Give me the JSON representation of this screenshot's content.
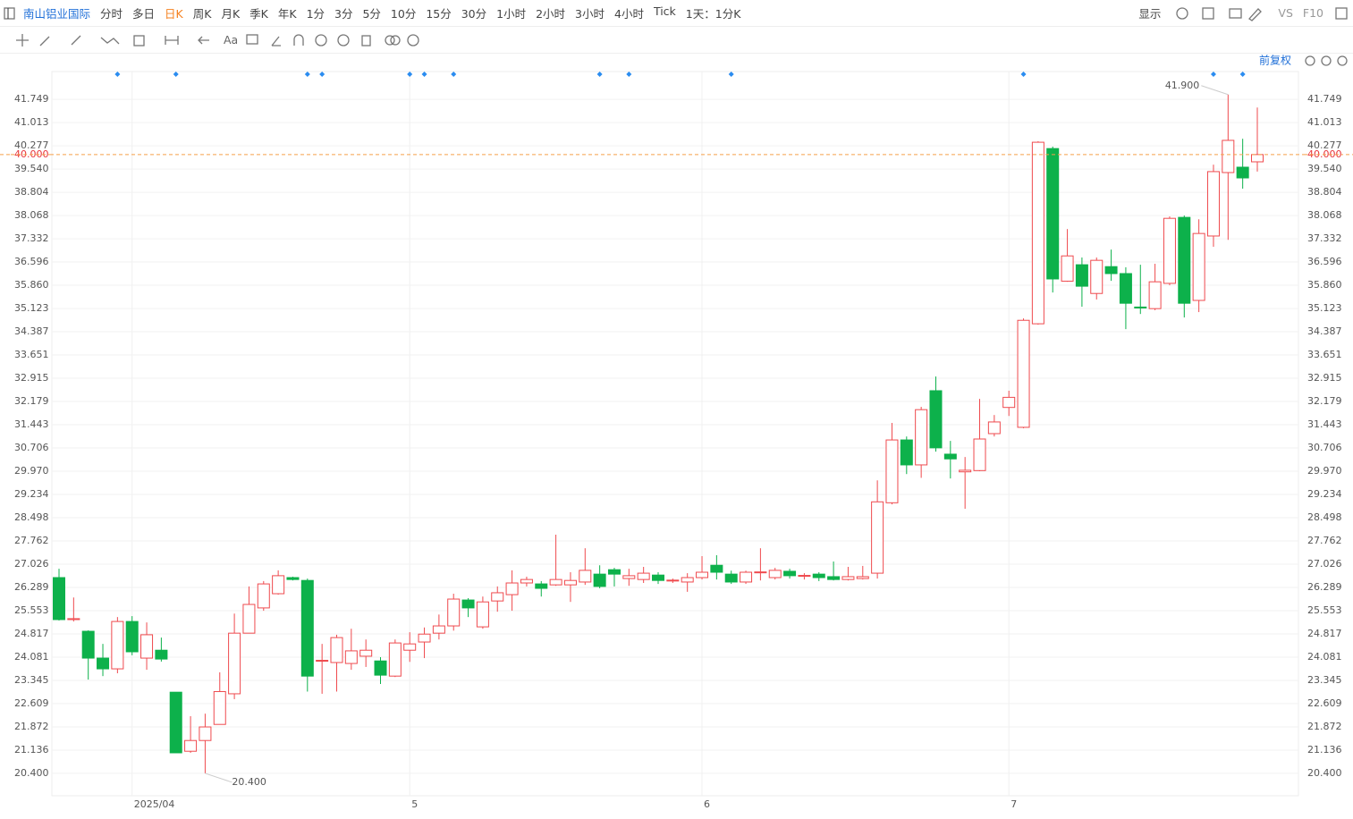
{
  "toolbar": {
    "symbol": "南山铝业国际",
    "periods": [
      "分时",
      "多日",
      "日K",
      "周K",
      "月K",
      "季K",
      "年K",
      "1分",
      "3分",
      "5分",
      "10分",
      "15分",
      "30分",
      "1小时",
      "2小时",
      "3小时",
      "4小时",
      "Tick"
    ],
    "active_period": 2,
    "interval": "1天：1分K",
    "display": "显示",
    "compare": "VS",
    "f10": "F10",
    "text_tool": "Aa"
  },
  "adjust": "前复权",
  "chart_data": {
    "type": "candlestick",
    "categories": [
      null,
      null,
      null,
      null,
      null,
      "2025/04",
      null,
      null,
      null,
      null,
      null,
      null,
      null,
      null,
      null,
      null,
      null,
      null,
      null,
      null,
      null,
      null,
      null,
      null,
      "5",
      null,
      null,
      null,
      null,
      null,
      null,
      null,
      null,
      null,
      null,
      null,
      null,
      null,
      null,
      null,
      null,
      null,
      null,
      null,
      "6",
      null,
      null,
      null,
      null,
      null,
      null,
      null,
      null,
      null,
      null,
      null,
      null,
      null,
      null,
      null,
      null,
      null,
      null,
      null,
      null,
      "7",
      null,
      null,
      null,
      null,
      null,
      null,
      null,
      null,
      null,
      null,
      null,
      null,
      null,
      null,
      null,
      null,
      null
    ],
    "open": [
      26.6,
      25.27,
      24.9,
      24.05,
      23.71,
      25.21,
      24.05,
      24.3,
      22.97,
      21.1,
      21.44,
      21.95,
      22.92,
      24.84,
      25.64,
      26.09,
      26.6,
      26.51,
      23.96,
      23.91,
      23.88,
      24.11,
      23.96,
      23.48,
      24.3,
      24.56,
      24.84,
      25.07,
      25.89,
      25.04,
      25.86,
      26.06,
      26.43,
      26.4,
      26.37,
      26.37,
      26.46,
      26.71,
      26.85,
      26.57,
      26.54,
      26.68,
      26.51,
      26.46,
      26.6,
      26.99,
      26.71,
      26.46,
      26.77,
      26.6,
      26.8,
      26.66,
      26.71,
      26.63,
      26.54,
      26.57,
      26.74,
      28.97,
      30.96,
      30.17,
      32.52,
      30.51,
      29.95,
      29.99,
      31.16,
      31.99,
      31.36,
      34.64,
      40.19,
      35.99,
      36.51,
      35.6,
      36.45,
      36.23,
      35.17,
      35.12,
      35.92,
      38.01,
      35.38,
      37.42,
      39.43,
      39.6,
      39.77
    ],
    "high": [
      26.88,
      25.97,
      24.93,
      24.5,
      25.35,
      25.38,
      25.18,
      24.7,
      22.97,
      22.21,
      22.29,
      23.6,
      25.46,
      26.32,
      26.49,
      26.83,
      26.63,
      26.57,
      24.5,
      24.79,
      24.98,
      24.64,
      24.08,
      24.64,
      24.87,
      25.02,
      25.43,
      26.09,
      25.95,
      26.0,
      26.32,
      26.83,
      26.63,
      26.49,
      27.96,
      26.77,
      27.53,
      26.99,
      26.91,
      26.88,
      26.94,
      26.77,
      26.57,
      26.74,
      27.28,
      27.31,
      26.82,
      26.82,
      27.53,
      26.91,
      26.88,
      26.74,
      26.77,
      27.11,
      26.94,
      26.97,
      29.68,
      31.5,
      31.07,
      32.01,
      32.97,
      30.93,
      30.42,
      32.26,
      31.75,
      32.52,
      34.81,
      40.42,
      40.25,
      37.64,
      36.74,
      36.74,
      36.99,
      36.43,
      36.51,
      36.54,
      38.04,
      38.07,
      37.95,
      39.68,
      41.9,
      40.5,
      41.49
    ],
    "low": [
      25.24,
      25.21,
      23.37,
      23.48,
      23.57,
      24.14,
      23.68,
      23.94,
      21.05,
      21.05,
      20.4,
      21.95,
      22.75,
      24.84,
      25.55,
      26.06,
      26.51,
      22.99,
      22.92,
      22.99,
      23.68,
      23.77,
      23.23,
      23.45,
      23.93,
      24.05,
      24.64,
      24.92,
      25.35,
      24.98,
      25.52,
      25.55,
      26.32,
      26.0,
      26.34,
      25.83,
      26.37,
      26.26,
      26.32,
      26.34,
      26.43,
      26.4,
      26.43,
      26.15,
      26.54,
      26.54,
      26.4,
      26.4,
      26.51,
      26.54,
      26.57,
      26.54,
      26.49,
      26.51,
      26.51,
      26.54,
      26.57,
      28.92,
      29.88,
      29.76,
      30.59,
      29.74,
      28.78,
      29.97,
      31.07,
      31.72,
      31.33,
      34.61,
      35.63,
      35.97,
      35.18,
      35.41,
      36.0,
      34.47,
      34.95,
      35.07,
      35.86,
      34.84,
      35.01,
      37.08,
      37.3,
      38.92,
      39.46
    ],
    "close": [
      25.27,
      25.3,
      24.05,
      23.71,
      25.21,
      24.25,
      24.79,
      24.02,
      21.05,
      21.44,
      21.87,
      22.99,
      24.84,
      25.75,
      26.4,
      26.66,
      26.54,
      23.48,
      23.98,
      24.7,
      24.28,
      24.3,
      23.51,
      24.53,
      24.5,
      24.81,
      25.07,
      25.92,
      25.64,
      25.83,
      26.12,
      26.43,
      26.54,
      26.26,
      26.54,
      26.51,
      26.83,
      26.32,
      26.71,
      26.66,
      26.74,
      26.51,
      26.52,
      26.6,
      26.77,
      26.77,
      26.46,
      26.77,
      26.78,
      26.83,
      26.66,
      26.67,
      26.6,
      26.54,
      26.63,
      26.63,
      29.0,
      30.96,
      30.17,
      31.92,
      30.71,
      30.36,
      30.0,
      30.99,
      31.53,
      32.31,
      34.75,
      40.39,
      36.06,
      36.79,
      35.83,
      36.65,
      36.23,
      35.29,
      35.14,
      35.97,
      37.98,
      35.29,
      37.5,
      39.46,
      40.45,
      39.26,
      40.0
    ],
    "up_color": "#ef4a4e",
    "down_color": "#0db14b",
    "ylim": [
      19.69,
      42.63
    ],
    "yticks": [
      {
        "value": 20.4,
        "label": "20.400"
      },
      {
        "value": 21.136,
        "label": "21.136"
      },
      {
        "value": 21.872,
        "label": "21.872"
      },
      {
        "value": 22.609,
        "label": "22.609"
      },
      {
        "value": 23.345,
        "label": "23.345"
      },
      {
        "value": 24.081,
        "label": "24.081"
      },
      {
        "value": 24.817,
        "label": "24.817"
      },
      {
        "value": 25.553,
        "label": "25.553"
      },
      {
        "value": 26.289,
        "label": "26.289"
      },
      {
        "value": 27.026,
        "label": "27.026"
      },
      {
        "value": 27.762,
        "label": "27.762"
      },
      {
        "value": 28.498,
        "label": "28.498"
      },
      {
        "value": 29.234,
        "label": "29.234"
      },
      {
        "value": 29.97,
        "label": "29.970"
      },
      {
        "value": 30.706,
        "label": "30.706"
      },
      {
        "value": 31.443,
        "label": "31.443"
      },
      {
        "value": 32.179,
        "label": "32.179"
      },
      {
        "value": 32.915,
        "label": "32.915"
      },
      {
        "value": 33.651,
        "label": "33.651"
      },
      {
        "value": 34.387,
        "label": "34.387"
      },
      {
        "value": 35.123,
        "label": "35.123"
      },
      {
        "value": 35.86,
        "label": "35.860"
      },
      {
        "value": 36.596,
        "label": "36.596"
      },
      {
        "value": 37.332,
        "label": "37.332"
      },
      {
        "value": 38.068,
        "label": "38.068"
      },
      {
        "value": 38.804,
        "label": "38.804"
      },
      {
        "value": 39.54,
        "label": "39.540"
      },
      {
        "value": 40.277,
        "label": "40.277"
      },
      {
        "value": 41.013,
        "label": "41.013"
      },
      {
        "value": 41.749,
        "label": "41.749"
      }
    ],
    "grid": true,
    "last_price": {
      "value": 40,
      "label": "40.000"
    },
    "annotations": [
      {
        "value": 41.9,
        "label": "41.900"
      },
      {
        "value": 20.4,
        "label": "20.400"
      }
    ],
    "event_markers": [
      4,
      8,
      17,
      18,
      24,
      25,
      27,
      37,
      39,
      46,
      66,
      79,
      81
    ]
  }
}
